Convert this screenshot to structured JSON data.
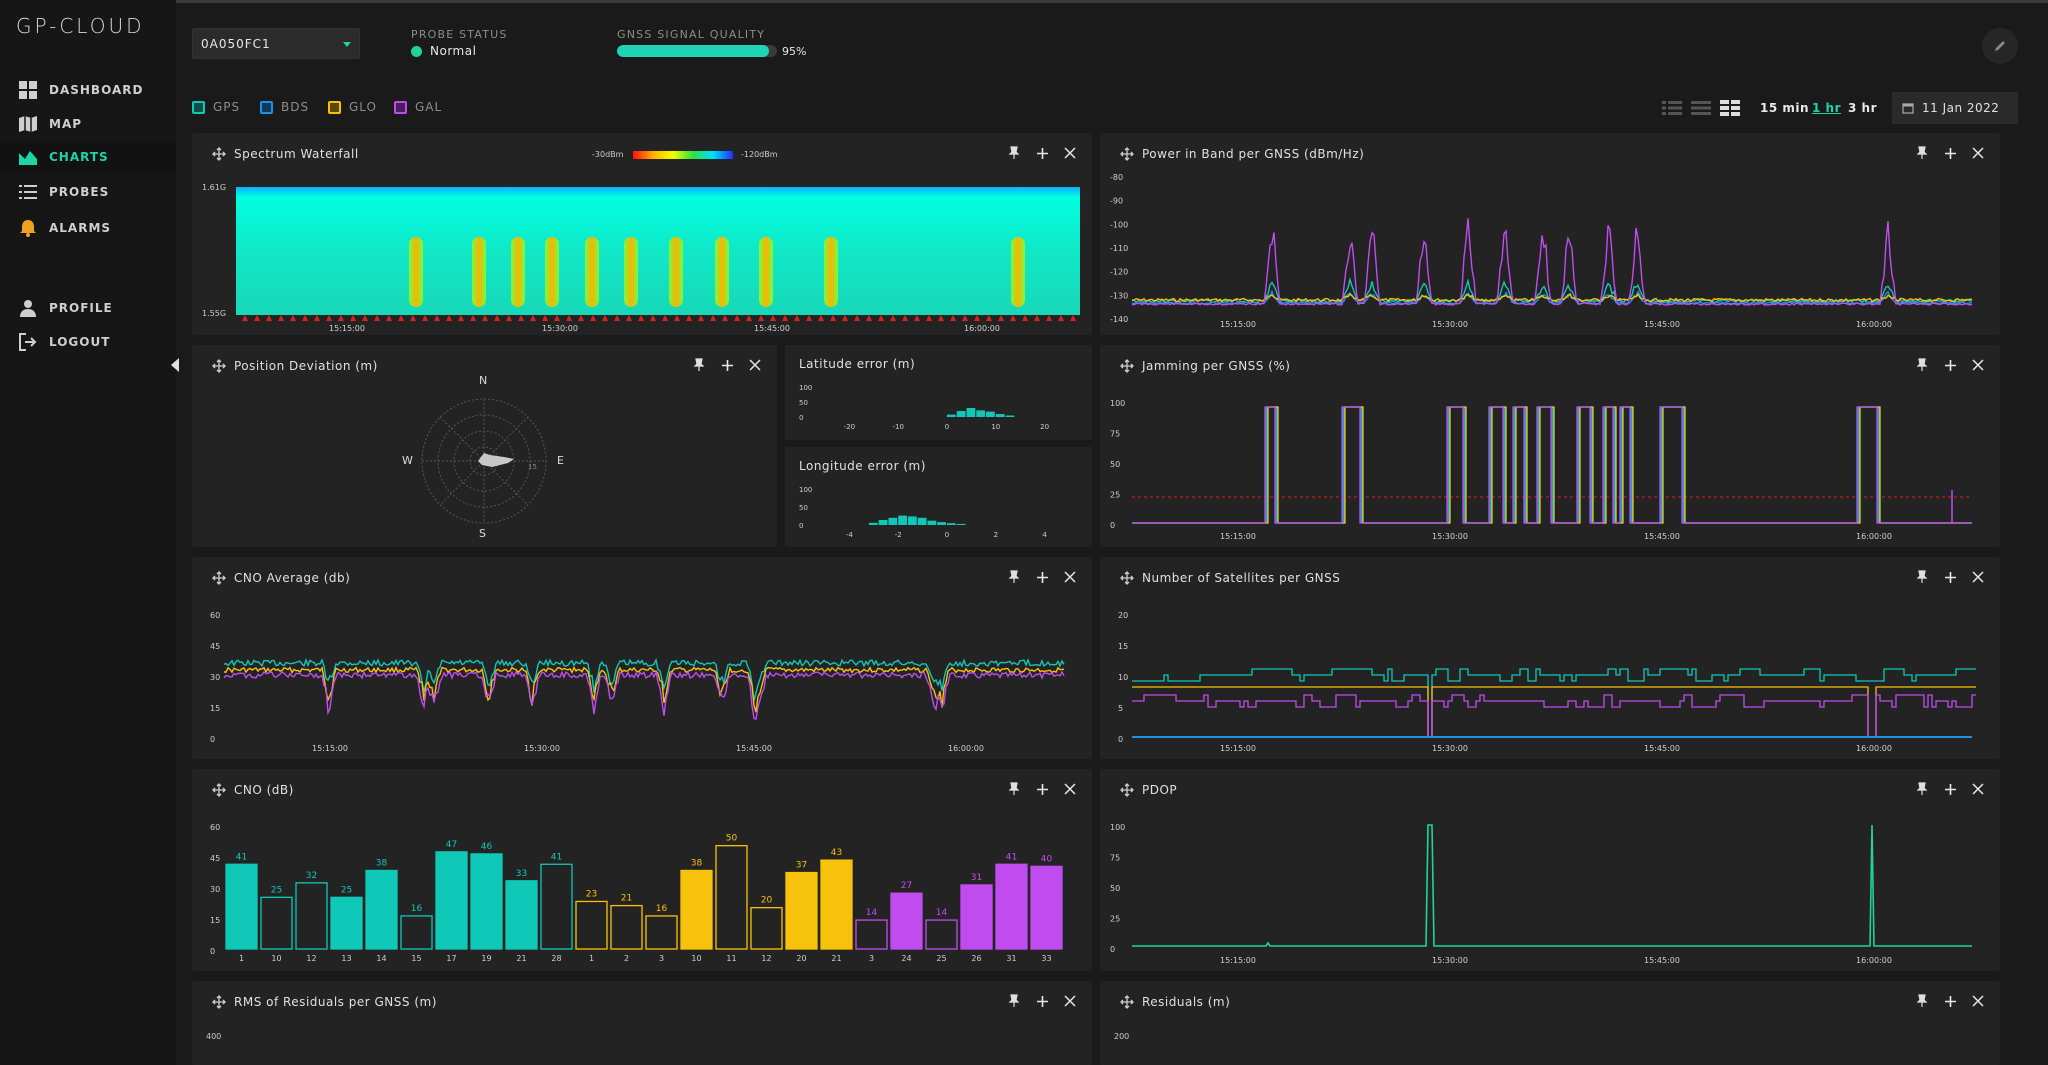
{
  "app": {
    "title": "GP-CLOUD"
  },
  "sidebar": {
    "items": [
      {
        "label": "DASHBOARD",
        "icon": "grid-icon"
      },
      {
        "label": "MAP",
        "icon": "map-icon"
      },
      {
        "label": "CHARTS",
        "icon": "area-chart-icon",
        "active": true
      },
      {
        "label": "PROBES",
        "icon": "list-icon"
      },
      {
        "label": "ALARMS",
        "icon": "bell-icon"
      },
      {
        "label": "PROFILE",
        "icon": "user-icon"
      },
      {
        "label": "LOGOUT",
        "icon": "logout-icon"
      }
    ]
  },
  "header": {
    "probe_id": "0A050FC1",
    "probe_status_label": "PROBE STATUS",
    "probe_status": "Normal",
    "gnss_quality_label": "GNSS SIGNAL QUALITY",
    "gnss_quality": "95%",
    "gnss_quality_value": 0.95
  },
  "legend": [
    {
      "label": "GPS",
      "color": "#10c8b8"
    },
    {
      "label": "BDS",
      "color": "#1f8fe0"
    },
    {
      "label": "GLO",
      "color": "#f6c20c"
    },
    {
      "label": "GAL",
      "color": "#c04cf0"
    }
  ],
  "time_ranges": [
    "15 min",
    "1 hr",
    "3 hr"
  ],
  "active_range": "1 hr",
  "date": "11 Jan 2022",
  "time_ticks": [
    "15:15:00",
    "15:30:00",
    "15:45:00",
    "16:00:00"
  ],
  "panels": {
    "spectrum": {
      "title": "Spectrum Waterfall",
      "scale_min": "-30dBm",
      "scale_max": "-120dBm",
      "y_top": "1.61G",
      "y_bottom": "1.55G"
    },
    "power": {
      "title": "Power in Band per GNSS (dBm/Hz)",
      "y_ticks": [
        "-80",
        "-90",
        "-100",
        "-110",
        "-120",
        "-130",
        "-140"
      ]
    },
    "position": {
      "title": "Position Deviation (m)",
      "n": "N",
      "s": "S",
      "e": "E",
      "w": "W",
      "ring_label": "15"
    },
    "lat": {
      "title": "Latitude error (m)",
      "x_ticks": [
        "-20",
        "-10",
        "0",
        "10",
        "20"
      ],
      "y_ticks": [
        "100",
        "50",
        "0"
      ]
    },
    "lon": {
      "title": "Longitude error (m)",
      "x_ticks": [
        "-4",
        "-2",
        "0",
        "2",
        "4"
      ],
      "y_ticks": [
        "100",
        "50",
        "0"
      ]
    },
    "jamming": {
      "title": "Jamming per GNSS (%)",
      "y_ticks": [
        "100",
        "75",
        "50",
        "25",
        "0"
      ]
    },
    "cno_avg": {
      "title": "CNO Average (db)",
      "y_ticks": [
        "60",
        "45",
        "30",
        "15",
        "0"
      ]
    },
    "sats": {
      "title": "Number of Satellites per GNSS",
      "y_ticks": [
        "20",
        "15",
        "10",
        "5",
        "0"
      ]
    },
    "cno": {
      "title": "CNO (dB)",
      "y_ticks": [
        "60",
        "45",
        "30",
        "15",
        "0"
      ]
    },
    "pdop": {
      "title": "PDOP",
      "y_ticks": [
        "100",
        "75",
        "50",
        "25",
        "0"
      ]
    },
    "rms": {
      "title": "RMS of Residuals per GNSS (m)",
      "y_top": "400"
    },
    "residuals": {
      "title": "Residuals (m)",
      "y_top": "200"
    }
  },
  "chart_data": [
    {
      "type": "bar",
      "title": "CNO (dB)",
      "ylim": [
        0,
        60
      ],
      "categories": [
        "1",
        "10",
        "12",
        "13",
        "14",
        "15",
        "17",
        "19",
        "21",
        "28",
        "1",
        "2",
        "3",
        "10",
        "11",
        "12",
        "20",
        "21",
        "3",
        "24",
        "25",
        "26",
        "31",
        "33"
      ],
      "values": [
        41,
        25,
        32,
        25,
        38,
        16,
        47,
        46,
        33,
        41,
        23,
        21,
        16,
        38,
        50,
        20,
        37,
        43,
        14,
        27,
        14,
        31,
        41,
        40
      ],
      "filled": [
        true,
        false,
        false,
        true,
        true,
        false,
        true,
        true,
        true,
        false,
        false,
        false,
        false,
        true,
        false,
        false,
        true,
        true,
        false,
        true,
        false,
        true,
        true,
        true
      ],
      "series_of_bar": [
        "GPS",
        "GPS",
        "GPS",
        "GPS",
        "GPS",
        "GPS",
        "GPS",
        "GPS",
        "GPS",
        "GPS",
        "GLO",
        "GLO",
        "GLO",
        "GLO",
        "GLO",
        "GLO",
        "GLO",
        "GLO",
        "GAL",
        "GAL",
        "GAL",
        "GAL",
        "GAL",
        "GAL"
      ]
    },
    {
      "type": "bar",
      "title": "Latitude error (m)",
      "xlim": [
        -25,
        25
      ],
      "ylim": [
        0,
        100
      ],
      "x": [
        0,
        2,
        4,
        6,
        8,
        10,
        12
      ],
      "values": [
        8,
        20,
        30,
        22,
        18,
        10,
        5
      ]
    },
    {
      "type": "bar",
      "title": "Longitude error (m)",
      "xlim": [
        -5,
        5
      ],
      "ylim": [
        0,
        100
      ],
      "x": [
        -3.2,
        -2.8,
        -2.4,
        -2.0,
        -1.6,
        -1.2,
        -0.8,
        -0.4,
        0.0,
        0.4
      ],
      "values": [
        6,
        14,
        20,
        26,
        24,
        20,
        12,
        8,
        5,
        3
      ]
    }
  ]
}
